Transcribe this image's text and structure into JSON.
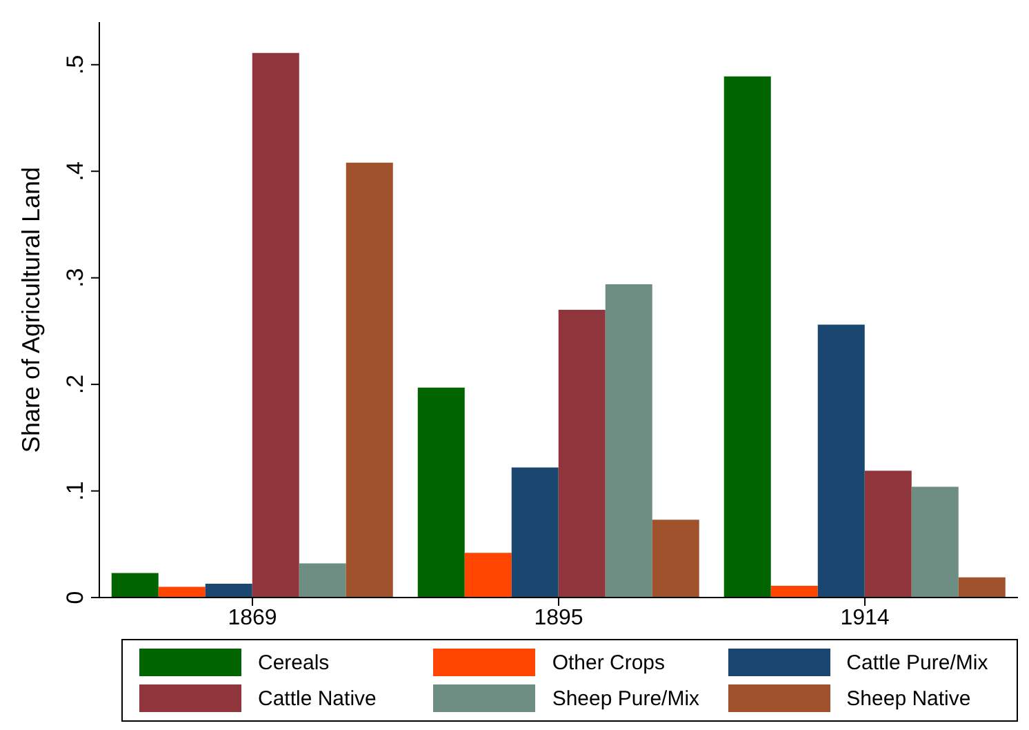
{
  "chart_data": {
    "type": "bar",
    "ylabel": "Share of Agricultural Land",
    "categories": [
      "1869",
      "1895",
      "1914"
    ],
    "series": [
      {
        "name": "Cereals",
        "color": "#006400",
        "values": [
          0.023,
          0.197,
          0.489
        ]
      },
      {
        "name": "Other Crops",
        "color": "#ff4500",
        "values": [
          0.01,
          0.042,
          0.011
        ]
      },
      {
        "name": "Cattle Pure/Mix",
        "color": "#1a476f",
        "values": [
          0.013,
          0.122,
          0.256
        ]
      },
      {
        "name": "Cattle Native",
        "color": "#90353b",
        "values": [
          0.511,
          0.27,
          0.119
        ]
      },
      {
        "name": "Sheep Pure/Mix",
        "color": "#6e8e84",
        "values": [
          0.032,
          0.294,
          0.104
        ]
      },
      {
        "name": "Sheep Native",
        "color": "#a0522d",
        "values": [
          0.408,
          0.073,
          0.019
        ]
      }
    ],
    "ylim": [
      0,
      0.54
    ],
    "yticks": [
      {
        "value": 0,
        "label": "0"
      },
      {
        "value": 0.1,
        "label": ".1"
      },
      {
        "value": 0.2,
        "label": ".2"
      },
      {
        "value": 0.3,
        "label": ".3"
      },
      {
        "value": 0.4,
        "label": ".4"
      },
      {
        "value": 0.5,
        "label": ".5"
      }
    ],
    "grid": false,
    "legend": "bottom"
  }
}
